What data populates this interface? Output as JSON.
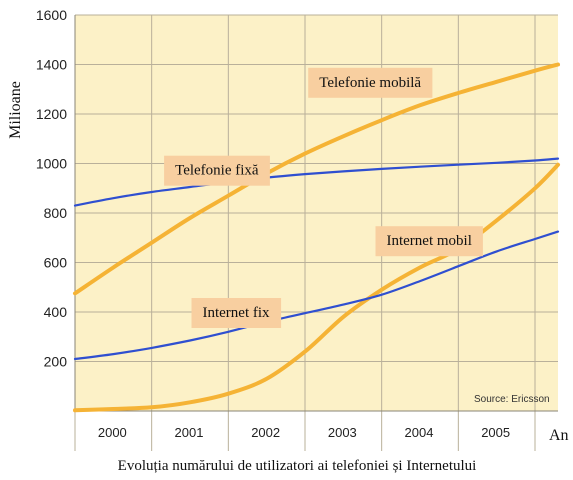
{
  "chart_data": {
    "type": "line",
    "title": "",
    "caption": "Evoluția numărului de utilizatori ai telefoniei și Internetului",
    "ylabel": "Milioane",
    "xlabel": "An",
    "ylim": [
      0,
      1600
    ],
    "yticks": [
      0,
      200,
      400,
      600,
      800,
      1000,
      1200,
      1400,
      1600
    ],
    "ytick_labels": [
      "",
      "200",
      "400",
      "600",
      "800",
      "1000",
      "1200",
      "1400",
      "1600"
    ],
    "xlim": [
      1999.5,
      2005.8
    ],
    "categories": [
      "2000",
      "2001",
      "2002",
      "2003",
      "2004",
      "2005"
    ],
    "grid": "horizontal and vertical",
    "source": "Source: Ericsson",
    "series": [
      {
        "name": "Telefonie mobilă",
        "color": "#f5b335",
        "x": [
          1999.5,
          2000.0,
          2000.5,
          2001.0,
          2001.5,
          2002.0,
          2002.5,
          2003.0,
          2003.5,
          2004.0,
          2004.5,
          2005.0,
          2005.5,
          2005.8
        ],
        "y": [
          475,
          580,
          680,
          780,
          870,
          960,
          1040,
          1110,
          1175,
          1235,
          1285,
          1330,
          1375,
          1400
        ]
      },
      {
        "name": "Telefonie fixă",
        "color": "#2f4fd0",
        "x": [
          1999.5,
          2000.0,
          2000.5,
          2001.0,
          2001.5,
          2002.0,
          2002.5,
          2003.0,
          2003.5,
          2004.0,
          2004.5,
          2005.0,
          2005.5,
          2005.8
        ],
        "y": [
          830,
          860,
          885,
          905,
          925,
          943,
          957,
          968,
          978,
          987,
          995,
          1003,
          1012,
          1020
        ]
      },
      {
        "name": "Internet mobil",
        "color": "#f5b335",
        "x": [
          1999.5,
          2000.0,
          2000.5,
          2001.0,
          2001.5,
          2002.0,
          2002.5,
          2003.0,
          2003.5,
          2004.0,
          2004.5,
          2005.0,
          2005.5,
          2005.8
        ],
        "y": [
          3,
          8,
          15,
          35,
          70,
          130,
          240,
          380,
          490,
          580,
          655,
          770,
          900,
          995
        ]
      },
      {
        "name": "Internet fix",
        "color": "#2f4fd0",
        "x": [
          1999.5,
          2000.0,
          2000.5,
          2001.0,
          2001.5,
          2002.0,
          2002.5,
          2003.0,
          2003.5,
          2004.0,
          2004.5,
          2005.0,
          2005.5,
          2005.8
        ],
        "y": [
          210,
          230,
          255,
          285,
          320,
          360,
          395,
          430,
          470,
          525,
          585,
          645,
          695,
          725
        ]
      }
    ],
    "label_positions": [
      {
        "series": 0,
        "anchor_x": 2003.35,
        "anchor_y": 1330
      },
      {
        "series": 1,
        "anchor_x": 2001.35,
        "anchor_y": 975
      },
      {
        "series": 2,
        "anchor_x": 2004.12,
        "anchor_y": 690
      },
      {
        "series": 3,
        "anchor_x": 2001.6,
        "anchor_y": 400
      }
    ],
    "colors": {
      "plot_bg": "#fcf1c7",
      "grid": "#b9b09a",
      "label_bg": "#f8cfa0"
    }
  }
}
